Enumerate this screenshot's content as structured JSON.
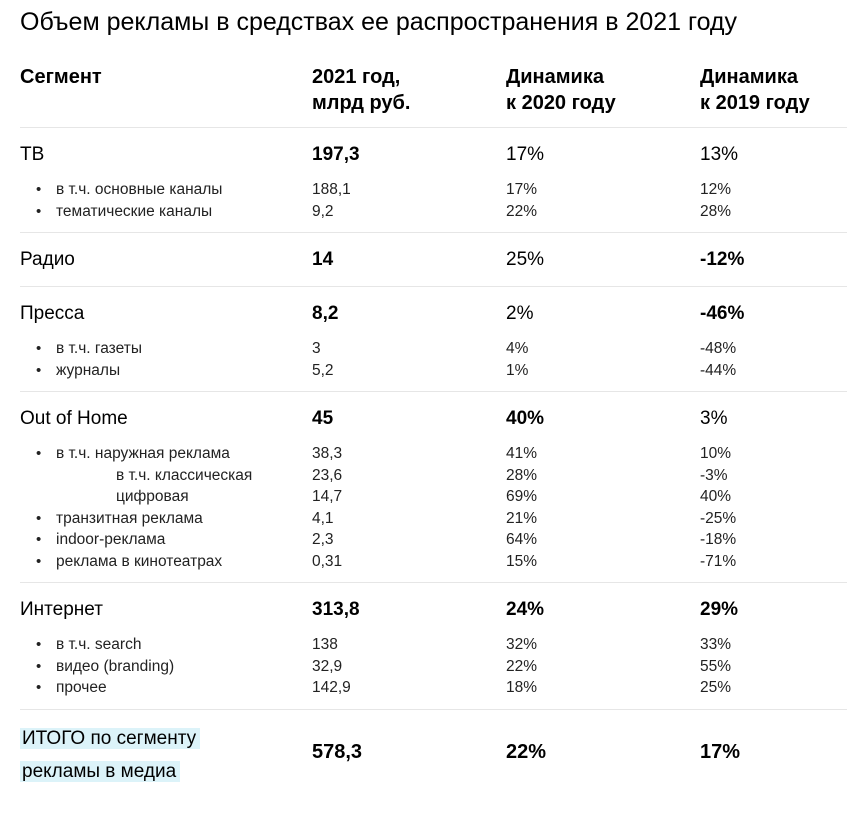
{
  "title": "Объем рекламы в средствах ее распространения в 2021 году",
  "headers": {
    "segment": "Сегмент",
    "value_line1": "2021 год,",
    "value_line2": "млрд руб.",
    "d2020_line1": "Динамика",
    "d2020_line2": "к 2020 году",
    "d2019_line1": "Динамика",
    "d2019_line2": "к 2019 году"
  },
  "tv": {
    "main": {
      "name": "ТВ",
      "value": "197,3",
      "d2020": "17%",
      "d2019": "13%"
    },
    "subs": [
      {
        "name": "в т.ч. основные каналы",
        "value": "188,1",
        "d2020": "17%",
        "d2019": "12%"
      },
      {
        "name": "тематические каналы",
        "value": "9,2",
        "d2020": "22%",
        "d2019": "28%"
      }
    ]
  },
  "radio": {
    "main": {
      "name": "Радио",
      "value": "14",
      "d2020": "25%",
      "d2019": "-12%"
    }
  },
  "press": {
    "main": {
      "name": "Пресса",
      "value": "8,2",
      "d2020": "2%",
      "d2019": "-46%"
    },
    "subs": [
      {
        "name": "в т.ч. газеты",
        "value": "3",
        "d2020": "4%",
        "d2019": "-48%"
      },
      {
        "name": "журналы",
        "value": "5,2",
        "d2020": "1%",
        "d2019": "-44%"
      }
    ]
  },
  "ooh": {
    "main": {
      "name": "Out of Home",
      "value": "45",
      "d2020": "40%",
      "d2019": "3%"
    },
    "subs": [
      {
        "name": "в т.ч. наружная реклама",
        "value": "38,3",
        "d2020": "41%",
        "d2019": "10%"
      },
      {
        "name": "в т.ч. классическая",
        "value": "23,6",
        "d2020": "28%",
        "d2019": "-3%"
      },
      {
        "name": "цифровая",
        "value": "14,7",
        "d2020": "69%",
        "d2019": "40%"
      },
      {
        "name": "транзитная реклама",
        "value": "4,1",
        "d2020": "21%",
        "d2019": "-25%"
      },
      {
        "name": "indoor-реклама",
        "value": "2,3",
        "d2020": "64%",
        "d2019": "-18%"
      },
      {
        "name": "реклама в кинотеатрах",
        "value": "0,31",
        "d2020": "15%",
        "d2019": "-71%"
      }
    ]
  },
  "internet": {
    "main": {
      "name": "Интернет",
      "value": "313,8",
      "d2020": "24%",
      "d2019": "29%"
    },
    "subs": [
      {
        "name": "в т.ч. search",
        "value": "138",
        "d2020": "32%",
        "d2019": "33%"
      },
      {
        "name": "видео (branding)",
        "value": "32,9",
        "d2020": "22%",
        "d2019": "55%"
      },
      {
        "name": "прочее",
        "value": "142,9",
        "d2020": "18%",
        "d2019": "25%"
      }
    ]
  },
  "total": {
    "line1": "ИТОГО по сегменту",
    "line2": "рекламы в медиа",
    "value": "578,3",
    "d2020": "22%",
    "d2019": "17%"
  },
  "colors": {
    "highlight": "#dcf3f9",
    "divider": "#e6e6e6"
  }
}
